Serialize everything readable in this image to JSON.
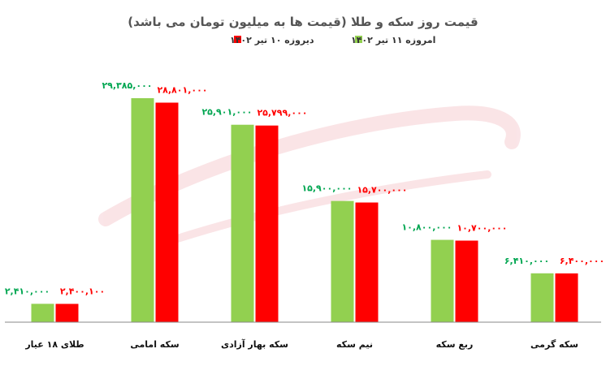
{
  "chart_data": {
    "type": "bar",
    "title": "قیمت روز سکه و طلا (قیمت ها به میلیون تومان می باشد)",
    "legend_position": "top",
    "grid": false,
    "ylim": [
      0,
      31000000
    ],
    "categories": [
      "طلای ۱۸ عیار",
      "سکه امامی",
      "سکه بهار آزادی",
      "نیم سکه",
      "ربع سکه",
      "سکه گرمی"
    ],
    "series": [
      {
        "name": "امروزه ۱۱ تیر ۱۴۰۲",
        "color": "#92d050",
        "values": [
          2410000,
          29385000,
          25901000,
          15900000,
          10800000,
          6410000
        ],
        "labels": [
          "۲,۴۱۰,۰۰۰",
          "۲۹,۳۸۵,۰۰۰",
          "۲۵,۹۰۱,۰۰۰",
          "۱۵,۹۰۰,۰۰۰",
          "۱۰,۸۰۰,۰۰۰",
          "۶,۴۱۰,۰۰۰"
        ],
        "label_color": "#00a651"
      },
      {
        "name": "دیروزه ۱۰ تیر ۱۴۰۲",
        "color": "#ff0000",
        "values": [
          2400100,
          28801000,
          25799000,
          15700000,
          10700000,
          6400000
        ],
        "labels": [
          "۲,۴۰۰,۱۰۰",
          "۲۸,۸۰۱,۰۰۰",
          "۲۵,۷۹۹,۰۰۰",
          "۱۵,۷۰۰,۰۰۰",
          "۱۰,۷۰۰,۰۰۰",
          "۶,۴۰۰,۰۰۰"
        ],
        "label_color": "#ff0000"
      }
    ]
  }
}
